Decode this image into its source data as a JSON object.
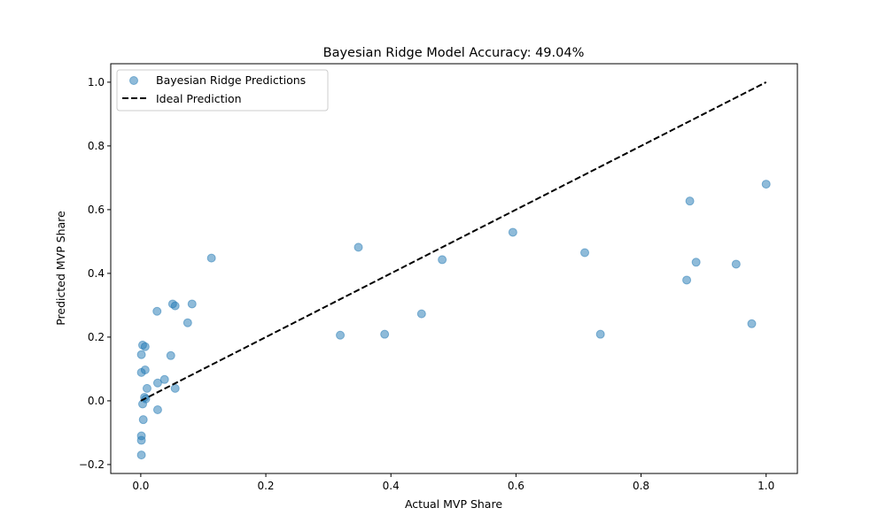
{
  "chart_data": {
    "type": "scatter",
    "title": "Bayesian Ridge Model Accuracy: 49.04%",
    "xlabel": "Actual MVP Share",
    "ylabel": "Predicted MVP Share",
    "xlim": [
      -0.048,
      1.05
    ],
    "ylim": [
      -0.228,
      1.058
    ],
    "xticks": [
      0.0,
      0.2,
      0.4,
      0.6,
      0.8,
      1.0
    ],
    "xtick_labels": [
      "0.0",
      "0.2",
      "0.4",
      "0.6",
      "0.8",
      "1.0"
    ],
    "yticks": [
      -0.2,
      0.0,
      0.2,
      0.4,
      0.6,
      0.8,
      1.0
    ],
    "ytick_labels": [
      "−0.2",
      "0.0",
      "0.2",
      "0.4",
      "0.6",
      "0.8",
      "1.0"
    ],
    "grid": false,
    "legend_placement": "upper-left",
    "colors": {
      "points": "#1f77b4",
      "ideal_line": "#000000"
    },
    "series": [
      {
        "name": "Bayesian Ridge Predictions",
        "type": "scatter",
        "points": [
          [
            0.113,
            0.448
          ],
          [
            0.026,
            0.281
          ],
          [
            0.051,
            0.304
          ],
          [
            0.055,
            0.298
          ],
          [
            0.082,
            0.304
          ],
          [
            0.075,
            0.245
          ],
          [
            0.003,
            0.175
          ],
          [
            0.007,
            0.17
          ],
          [
            0.001,
            0.145
          ],
          [
            0.048,
            0.142
          ],
          [
            0.001,
            0.089
          ],
          [
            0.007,
            0.097
          ],
          [
            0.01,
            0.039
          ],
          [
            0.027,
            0.056
          ],
          [
            0.038,
            0.067
          ],
          [
            0.055,
            0.039
          ],
          [
            0.006,
            0.011
          ],
          [
            0.008,
            0.006
          ],
          [
            0.003,
            -0.01
          ],
          [
            0.027,
            -0.028
          ],
          [
            0.004,
            -0.059
          ],
          [
            0.001,
            -0.11
          ],
          [
            0.001,
            -0.124
          ],
          [
            0.001,
            -0.17
          ],
          [
            0.348,
            0.482
          ],
          [
            0.319,
            0.206
          ],
          [
            0.39,
            0.209
          ],
          [
            0.449,
            0.273
          ],
          [
            0.482,
            0.443
          ],
          [
            0.595,
            0.529
          ],
          [
            0.71,
            0.465
          ],
          [
            0.735,
            0.209
          ],
          [
            0.878,
            0.627
          ],
          [
            0.873,
            0.379
          ],
          [
            0.888,
            0.435
          ],
          [
            0.952,
            0.429
          ],
          [
            0.977,
            0.242
          ],
          [
            1.0,
            0.68
          ]
        ]
      },
      {
        "name": "Ideal Prediction",
        "type": "line",
        "style": "dashed",
        "points": [
          [
            0,
            0
          ],
          [
            1,
            1
          ]
        ]
      }
    ]
  }
}
